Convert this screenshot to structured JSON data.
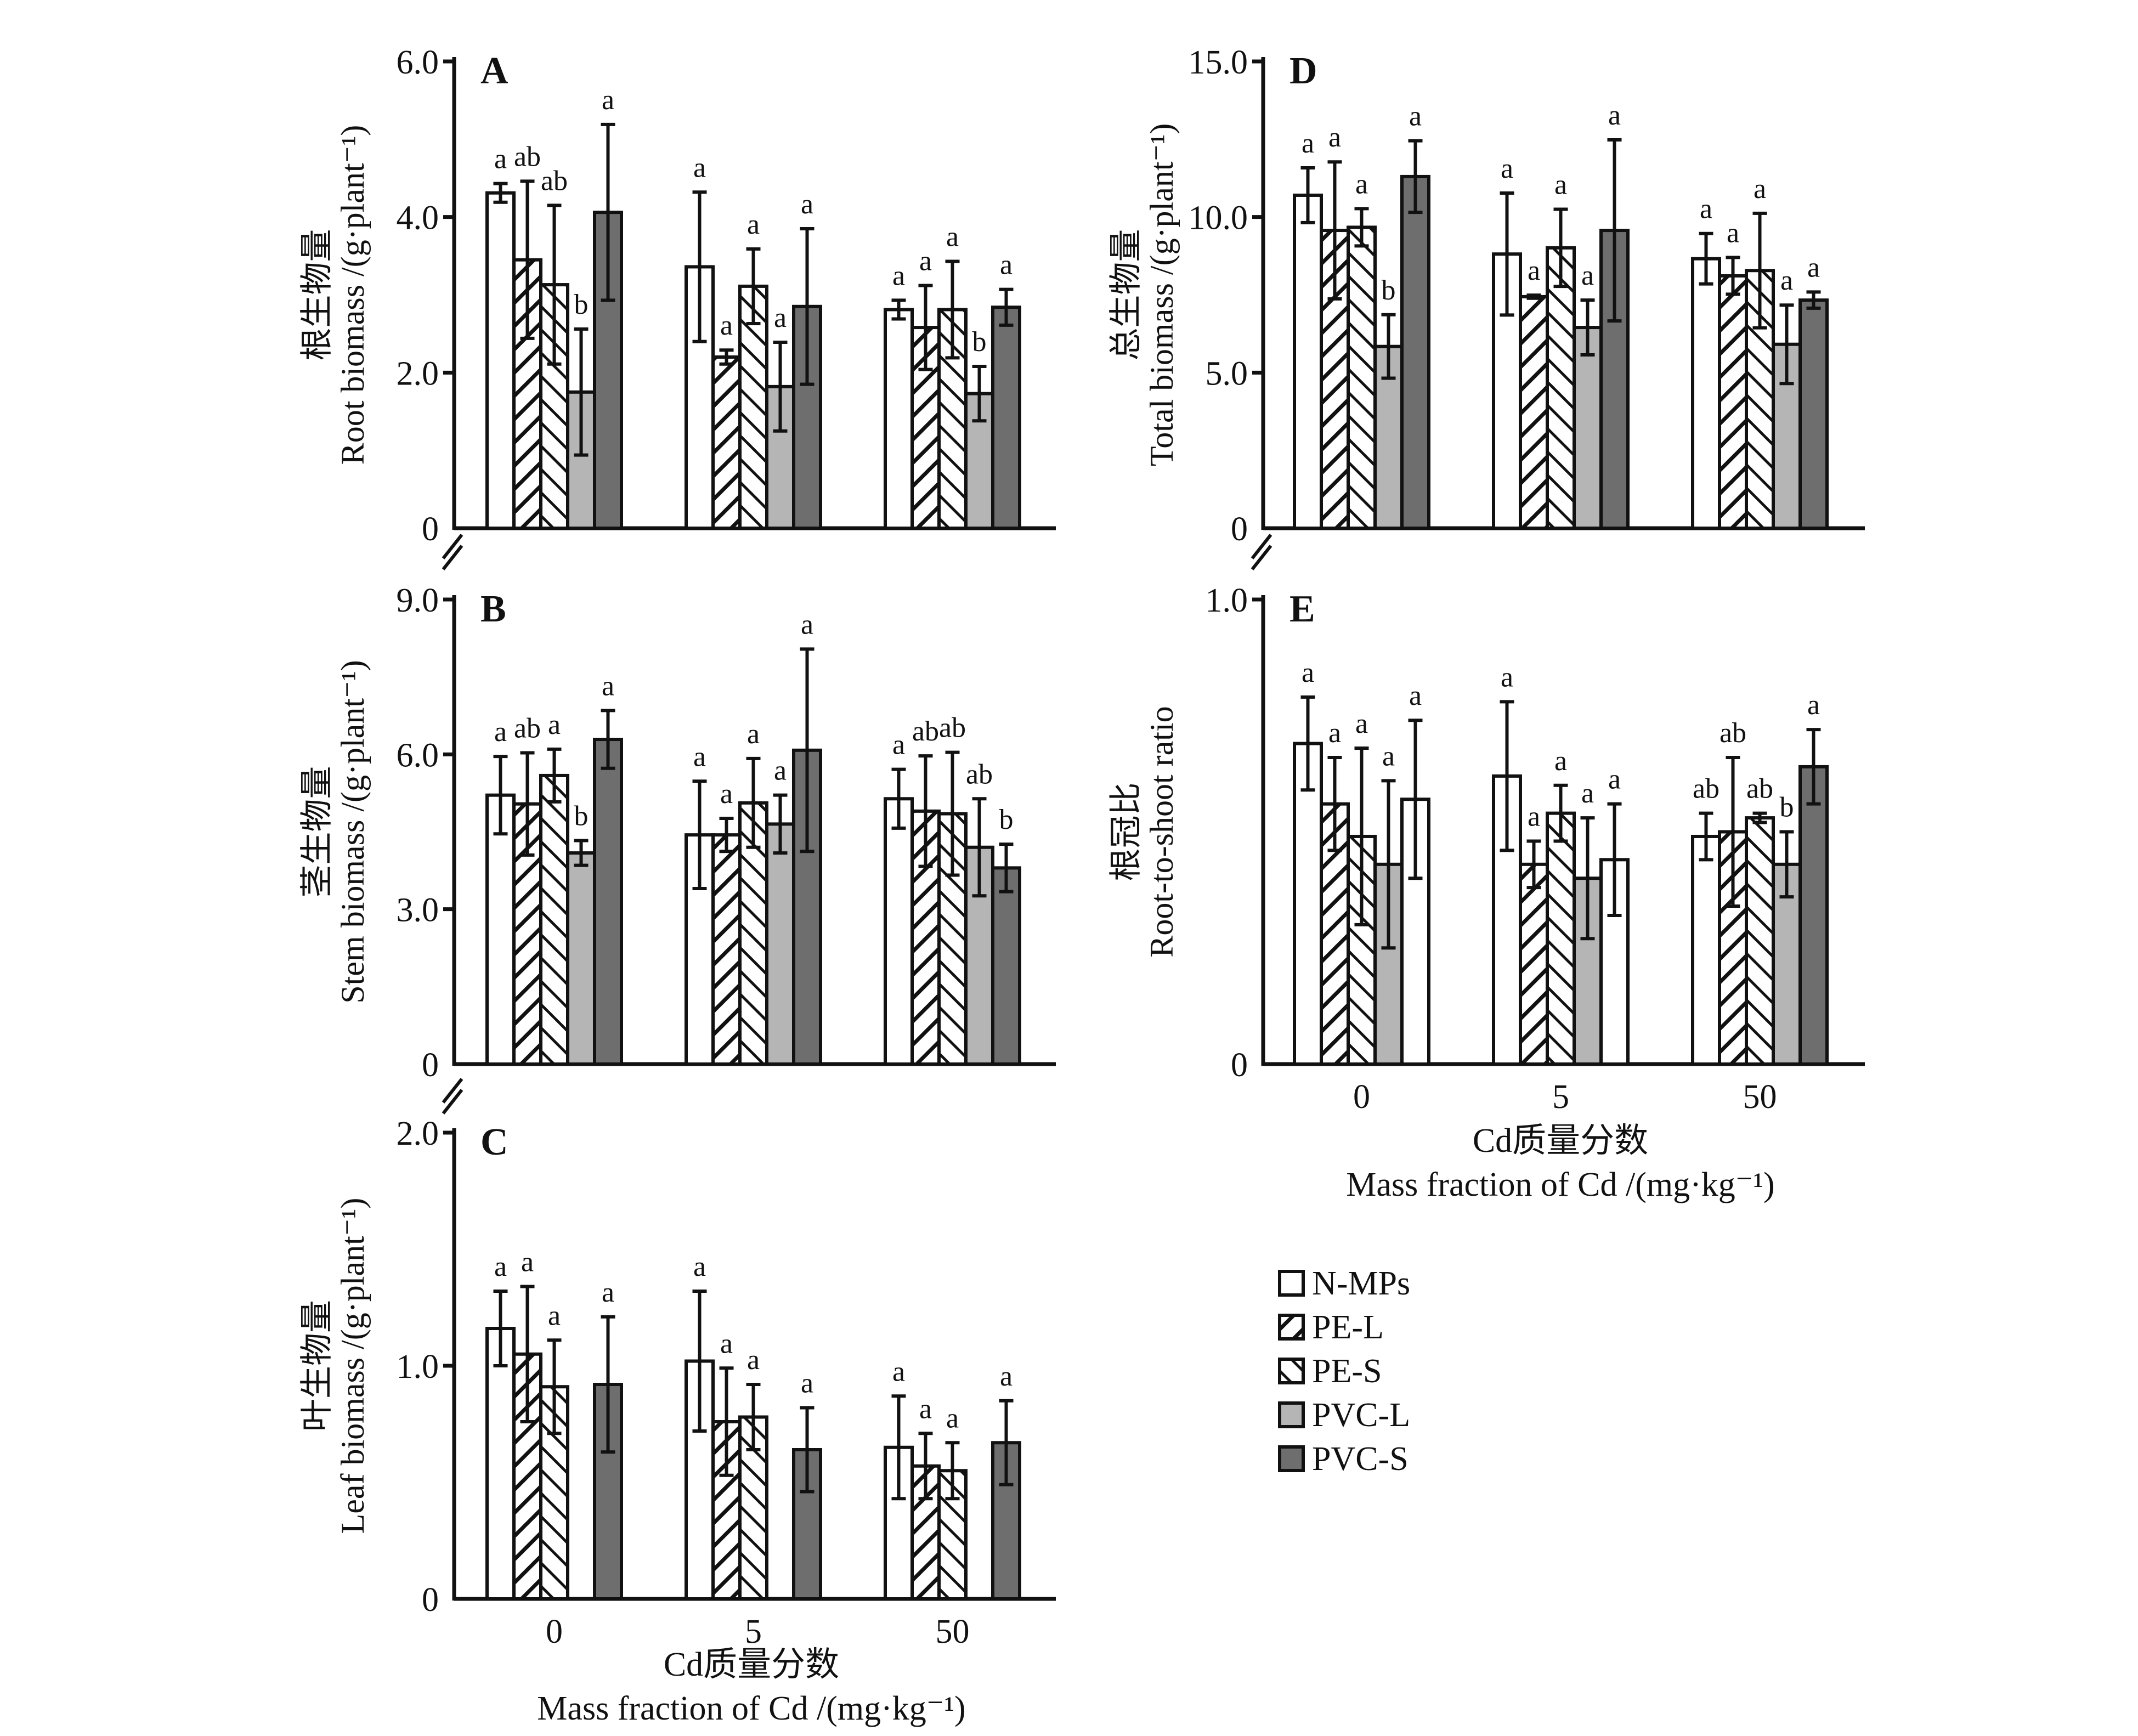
{
  "legend": [
    {
      "name": "N-MPs",
      "fill": "#ffffff",
      "pattern": "none"
    },
    {
      "name": "PE-L",
      "fill": "#ffffff",
      "pattern": "forward-hatch"
    },
    {
      "name": "PE-S",
      "fill": "#ffffff",
      "pattern": "back-hatch"
    },
    {
      "name": "PVC-L",
      "fill": "#b5b5b5",
      "pattern": "none"
    },
    {
      "name": "PVC-S",
      "fill": "#6e6e6e",
      "pattern": "none"
    }
  ],
  "x_axis": {
    "label_cn": "Cd质量分数",
    "label_en": "Mass fraction of Cd /(mg·kg⁻¹)",
    "categories": [
      "0",
      "5",
      "50"
    ]
  },
  "chart_data": [
    {
      "id": "A",
      "type": "bar",
      "title": "A",
      "ylabel_cn": "根生物量",
      "ylabel_en": "Root biomass /(g·plant⁻¹)",
      "ylim": [
        0,
        6.0
      ],
      "yticks": [
        "0",
        "2.0",
        "4.0",
        "6.0"
      ],
      "ytick_values": [
        0,
        2,
        4,
        6
      ],
      "categories": [
        "0",
        "5",
        "50"
      ],
      "series": [
        {
          "name": "N-MPs",
          "values": [
            4.31,
            3.36,
            2.81
          ],
          "errors": [
            0.12,
            0.96,
            0.12
          ],
          "letters": [
            "a",
            "a",
            "a"
          ]
        },
        {
          "name": "PE-L",
          "values": [
            3.45,
            2.2,
            2.58
          ],
          "errors": [
            1.01,
            0.09,
            0.54
          ],
          "letters": [
            "ab",
            "a",
            "a"
          ]
        },
        {
          "name": "PE-S",
          "values": [
            3.13,
            3.11,
            2.81
          ],
          "errors": [
            1.02,
            0.48,
            0.62
          ],
          "letters": [
            "ab",
            "a",
            "a"
          ]
        },
        {
          "name": "PVC-L",
          "values": [
            1.75,
            1.82,
            1.73
          ],
          "errors": [
            0.81,
            0.57,
            0.35
          ],
          "letters": [
            "b",
            "a",
            "b"
          ]
        },
        {
          "name": "PVC-S",
          "values": [
            4.06,
            2.85,
            2.84
          ],
          "errors": [
            1.13,
            1.0,
            0.23
          ],
          "letters": [
            "a",
            "a",
            "a"
          ]
        }
      ]
    },
    {
      "id": "B",
      "type": "bar",
      "title": "B",
      "ylabel_cn": "茎生物量",
      "ylabel_en": "Stem biomass /(g·plant⁻¹)",
      "ylim": [
        0,
        9.0
      ],
      "yticks": [
        "0",
        "3.0",
        "6.0",
        "9.0"
      ],
      "ytick_values": [
        0,
        3,
        6,
        9
      ],
      "categories": [
        "0",
        "5",
        "50"
      ],
      "series": [
        {
          "name": "N-MPs",
          "values": [
            5.21,
            4.44,
            5.14
          ],
          "errors": [
            0.75,
            1.04,
            0.57
          ],
          "letters": [
            "a",
            "a",
            "a"
          ]
        },
        {
          "name": "PE-L",
          "values": [
            5.04,
            4.44,
            4.9
          ],
          "errors": [
            0.99,
            0.32,
            1.07
          ],
          "letters": [
            "ab",
            "a",
            "ab"
          ]
        },
        {
          "name": "PE-S",
          "values": [
            5.59,
            5.06,
            4.85
          ],
          "errors": [
            0.51,
            0.86,
            1.19
          ],
          "letters": [
            "a",
            "a",
            "ab"
          ]
        },
        {
          "name": "PVC-L",
          "values": [
            4.09,
            4.65,
            4.2
          ],
          "errors": [
            0.24,
            0.56,
            0.94
          ],
          "letters": [
            "b",
            "a",
            "ab"
          ]
        },
        {
          "name": "PVC-S",
          "values": [
            6.29,
            6.08,
            3.8
          ],
          "errors": [
            0.56,
            1.96,
            0.46
          ],
          "letters": [
            "a",
            "a",
            "b"
          ]
        }
      ]
    },
    {
      "id": "C",
      "type": "bar",
      "title": "C",
      "ylabel_cn": "叶生物量",
      "ylabel_en": "Leaf biomass /(g·plant⁻¹)",
      "ylim": [
        0,
        2.0
      ],
      "yticks": [
        "0",
        "1.0",
        "2.0"
      ],
      "ytick_values": [
        0,
        1,
        2
      ],
      "categories": [
        "0",
        "5",
        "50"
      ],
      "series": [
        {
          "name": "N-MPs",
          "values": [
            1.16,
            1.02,
            0.65
          ],
          "errors": [
            0.16,
            0.3,
            0.22
          ],
          "letters": [
            "a",
            "a",
            "a"
          ]
        },
        {
          "name": "PE-L",
          "values": [
            1.05,
            0.76,
            0.57
          ],
          "errors": [
            0.29,
            0.23,
            0.14
          ],
          "letters": [
            "a",
            "a",
            "a"
          ]
        },
        {
          "name": "PE-S",
          "values": [
            0.91,
            0.78,
            0.55
          ],
          "errors": [
            0.2,
            0.14,
            0.12
          ],
          "letters": [
            "a",
            "a",
            "a"
          ]
        },
        {
          "name": "PVC-L",
          "values": [
            null,
            null,
            null
          ],
          "errors": [
            null,
            null,
            null
          ],
          "letters": [
            "",
            "",
            ""
          ]
        },
        {
          "name": "PVC-S",
          "values": [
            0.92,
            0.64,
            0.67
          ],
          "errors": [
            0.29,
            0.18,
            0.18
          ],
          "letters": [
            "a",
            "a",
            "a"
          ]
        }
      ]
    },
    {
      "id": "D",
      "type": "bar",
      "title": "D",
      "ylabel_cn": "总生物量",
      "ylabel_en": "Total biomass /(g·plant⁻¹)",
      "ylim": [
        0,
        15.0
      ],
      "yticks": [
        "0",
        "5.0",
        "10.0",
        "15.0"
      ],
      "ytick_values": [
        0,
        5,
        10,
        15
      ],
      "categories": [
        "0",
        "5",
        "50"
      ],
      "series": [
        {
          "name": "N-MPs",
          "values": [
            10.7,
            8.81,
            8.66
          ],
          "errors": [
            0.88,
            1.96,
            0.81
          ],
          "letters": [
            "a",
            "a",
            "a"
          ]
        },
        {
          "name": "PE-L",
          "values": [
            9.57,
            7.44,
            8.11
          ],
          "errors": [
            2.2,
            0.05,
            0.59
          ],
          "letters": [
            "a",
            "a",
            "a"
          ]
        },
        {
          "name": "PE-S",
          "values": [
            9.67,
            9.01,
            8.28
          ],
          "errors": [
            0.6,
            1.24,
            1.84
          ],
          "letters": [
            "a",
            "a",
            "a"
          ]
        },
        {
          "name": "PVC-L",
          "values": [
            5.84,
            6.45,
            5.91
          ],
          "errors": [
            1.02,
            0.88,
            1.26
          ],
          "letters": [
            "b",
            "a",
            "a"
          ]
        },
        {
          "name": "PVC-S",
          "values": [
            11.3,
            9.57,
            7.33
          ],
          "errors": [
            1.15,
            2.91,
            0.26
          ],
          "letters": [
            "a",
            "a",
            "a"
          ]
        }
      ]
    },
    {
      "id": "E",
      "type": "bar",
      "title": "E",
      "ylabel_cn": "根冠比",
      "ylabel_en": "Root-to-shoot ratio",
      "ylim": [
        0,
        1.0
      ],
      "yticks": [
        "0",
        "1.0"
      ],
      "ytick_values": [
        0,
        1
      ],
      "categories": [
        "0",
        "5",
        "50"
      ],
      "series": [
        {
          "name": "N-MPs",
          "values": [
            0.69,
            0.62,
            0.49
          ],
          "errors": [
            0.1,
            0.16,
            0.05
          ],
          "letters": [
            "a",
            "a",
            "ab"
          ]
        },
        {
          "name": "PE-L",
          "values": [
            0.56,
            0.43,
            0.5
          ],
          "errors": [
            0.1,
            0.05,
            0.16
          ],
          "letters": [
            "a",
            "a",
            "ab"
          ]
        },
        {
          "name": "PE-S",
          "values": [
            0.49,
            0.54,
            0.53
          ],
          "errors": [
            0.19,
            0.06,
            0.01
          ],
          "letters": [
            "a",
            "a",
            "ab"
          ]
        },
        {
          "name": "PVC-L",
          "values": [
            0.43,
            0.4,
            0.43
          ],
          "errors": [
            0.18,
            0.13,
            0.07
          ],
          "letters": [
            "a",
            "a",
            "b"
          ]
        },
        {
          "name": "PVC-S",
          "values": [
            0.57,
            0.44,
            0.64
          ],
          "errors": [
            0.17,
            0.12,
            0.08
          ],
          "letters": [
            "a",
            "a",
            "a"
          ],
          "fills": [
            "#ffffff",
            "#ffffff",
            "#6e6e6e"
          ]
        }
      ]
    }
  ]
}
